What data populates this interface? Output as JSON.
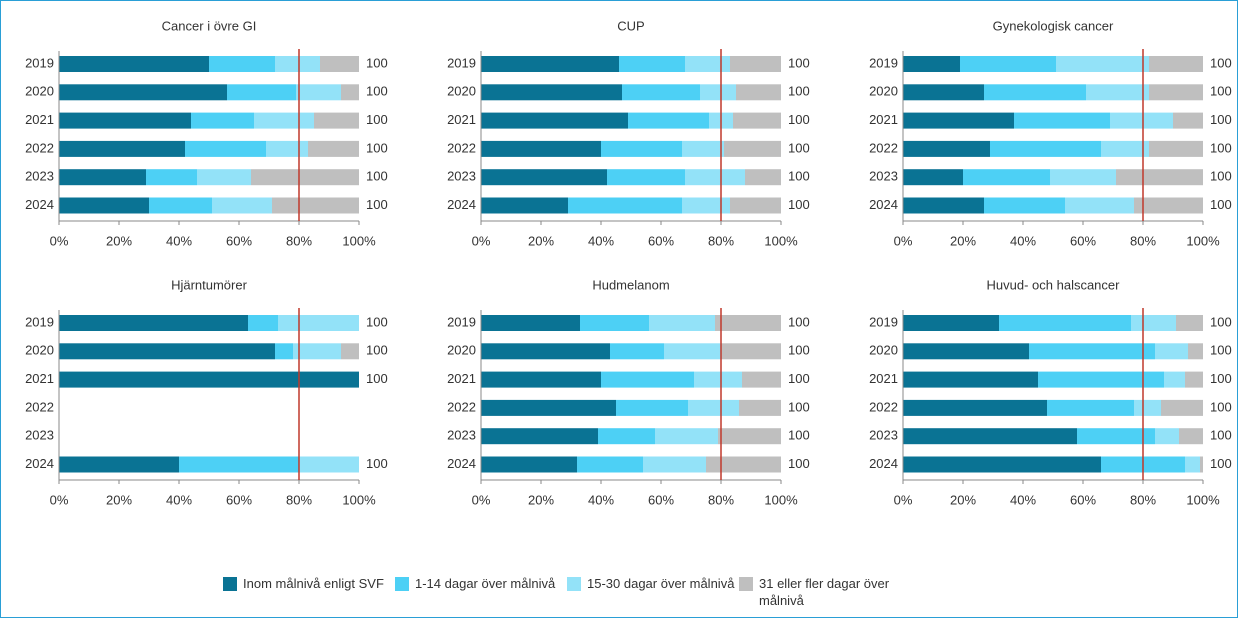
{
  "legend": [
    {
      "name": "Inom målnivå enligt SVF",
      "color": "#0a7394"
    },
    {
      "name": "1-14 dagar över målnivå",
      "color": "#4dd0f5"
    },
    {
      "name": "15-30 dagar över målnivå",
      "color": "#93e2f8"
    },
    {
      "name": "31 eller fler dagar över målnivå",
      "color": "#bfbfbf"
    }
  ],
  "chart_data": [
    {
      "type": "bar",
      "orientation": "horizontal",
      "stacked": true,
      "title": "Cancer i övre GI",
      "categories": [
        "2019",
        "2020",
        "2021",
        "2022",
        "2023",
        "2024"
      ],
      "series": [
        {
          "values": [
            50,
            56,
            44,
            42,
            29,
            30
          ]
        },
        {
          "values": [
            22,
            23,
            21,
            27,
            17,
            21
          ]
        },
        {
          "values": [
            15,
            15,
            20,
            14,
            18,
            20
          ]
        },
        {
          "values": [
            13,
            6,
            15,
            17,
            36,
            29
          ]
        }
      ],
      "totals": [
        100,
        100,
        100,
        100,
        100,
        100
      ],
      "reference_line": 80,
      "xlim": [
        0,
        100
      ],
      "xticks": [
        {
          "value": 0,
          "label": "0%"
        },
        {
          "value": 20,
          "label": "20%"
        },
        {
          "value": 40,
          "label": "40%"
        },
        {
          "value": 60,
          "label": "60%"
        },
        {
          "value": 80,
          "label": "80%"
        },
        {
          "value": 100,
          "label": "100%"
        }
      ]
    },
    {
      "type": "bar",
      "orientation": "horizontal",
      "stacked": true,
      "title": "CUP",
      "categories": [
        "2019",
        "2020",
        "2021",
        "2022",
        "2023",
        "2024"
      ],
      "series": [
        {
          "values": [
            46,
            47,
            49,
            40,
            42,
            29
          ]
        },
        {
          "values": [
            22,
            26,
            27,
            27,
            26,
            38
          ]
        },
        {
          "values": [
            15,
            12,
            8,
            14,
            20,
            16
          ]
        },
        {
          "values": [
            17,
            15,
            16,
            19,
            12,
            17
          ]
        }
      ],
      "totals": [
        100,
        100,
        100,
        100,
        100,
        100
      ],
      "reference_line": 80,
      "xlim": [
        0,
        100
      ],
      "xticks": [
        {
          "value": 0,
          "label": "0%"
        },
        {
          "value": 20,
          "label": "20%"
        },
        {
          "value": 40,
          "label": "40%"
        },
        {
          "value": 60,
          "label": "60%"
        },
        {
          "value": 80,
          "label": "80%"
        },
        {
          "value": 100,
          "label": "100%"
        }
      ]
    },
    {
      "type": "bar",
      "orientation": "horizontal",
      "stacked": true,
      "title": "Gynekologisk cancer",
      "categories": [
        "2019",
        "2020",
        "2021",
        "2022",
        "2023",
        "2024"
      ],
      "series": [
        {
          "values": [
            19,
            27,
            37,
            29,
            20,
            27
          ]
        },
        {
          "values": [
            32,
            34,
            32,
            37,
            29,
            27
          ]
        },
        {
          "values": [
            31,
            21,
            21,
            16,
            22,
            23
          ]
        },
        {
          "values": [
            18,
            18,
            10,
            18,
            29,
            23
          ]
        }
      ],
      "totals": [
        100,
        100,
        100,
        100,
        100,
        100
      ],
      "reference_line": 80,
      "xlim": [
        0,
        100
      ],
      "xticks": [
        {
          "value": 0,
          "label": "0%"
        },
        {
          "value": 20,
          "label": "20%"
        },
        {
          "value": 40,
          "label": "40%"
        },
        {
          "value": 60,
          "label": "60%"
        },
        {
          "value": 80,
          "label": "80%"
        },
        {
          "value": 100,
          "label": "100%"
        }
      ]
    },
    {
      "type": "bar",
      "orientation": "horizontal",
      "stacked": true,
      "title": "Hjärntumörer",
      "categories": [
        "2019",
        "2020",
        "2021",
        "2022",
        "2023",
        "2024"
      ],
      "series": [
        {
          "values": [
            63,
            72,
            100,
            null,
            null,
            40
          ]
        },
        {
          "values": [
            10,
            6,
            0,
            null,
            null,
            40
          ]
        },
        {
          "values": [
            27,
            16,
            0,
            null,
            null,
            20
          ]
        },
        {
          "values": [
            0,
            6,
            0,
            null,
            null,
            0
          ]
        }
      ],
      "totals": [
        100,
        100,
        100,
        null,
        null,
        100
      ],
      "reference_line": 80,
      "xlim": [
        0,
        100
      ],
      "xticks": [
        {
          "value": 0,
          "label": "0%"
        },
        {
          "value": 20,
          "label": "20%"
        },
        {
          "value": 40,
          "label": "40%"
        },
        {
          "value": 60,
          "label": "60%"
        },
        {
          "value": 80,
          "label": "80%"
        },
        {
          "value": 100,
          "label": "100%"
        }
      ]
    },
    {
      "type": "bar",
      "orientation": "horizontal",
      "stacked": true,
      "title": "Hudmelanom",
      "categories": [
        "2019",
        "2020",
        "2021",
        "2022",
        "2023",
        "2024"
      ],
      "series": [
        {
          "values": [
            33,
            43,
            40,
            45,
            39,
            32
          ]
        },
        {
          "values": [
            23,
            18,
            31,
            24,
            19,
            22
          ]
        },
        {
          "values": [
            22,
            19,
            16,
            17,
            21,
            21
          ]
        },
        {
          "values": [
            22,
            20,
            13,
            14,
            21,
            25
          ]
        }
      ],
      "totals": [
        100,
        100,
        100,
        100,
        100,
        100
      ],
      "reference_line": 80,
      "xlim": [
        0,
        100
      ],
      "xticks": [
        {
          "value": 0,
          "label": "0%"
        },
        {
          "value": 20,
          "label": "20%"
        },
        {
          "value": 40,
          "label": "40%"
        },
        {
          "value": 60,
          "label": "60%"
        },
        {
          "value": 80,
          "label": "80%"
        },
        {
          "value": 100,
          "label": "100%"
        }
      ]
    },
    {
      "type": "bar",
      "orientation": "horizontal",
      "stacked": true,
      "title": "Huvud- och halscancer",
      "categories": [
        "2019",
        "2020",
        "2021",
        "2022",
        "2023",
        "2024"
      ],
      "series": [
        {
          "values": [
            32,
            42,
            45,
            48,
            58,
            66
          ]
        },
        {
          "values": [
            44,
            42,
            42,
            29,
            26,
            28
          ]
        },
        {
          "values": [
            15,
            11,
            7,
            9,
            8,
            5
          ]
        },
        {
          "values": [
            9,
            5,
            6,
            14,
            8,
            1
          ]
        }
      ],
      "totals": [
        100,
        100,
        100,
        100,
        100,
        100
      ],
      "reference_line": 80,
      "xlim": [
        0,
        100
      ],
      "xticks": [
        {
          "value": 0,
          "label": "0%"
        },
        {
          "value": 20,
          "label": "20%"
        },
        {
          "value": 40,
          "label": "40%"
        },
        {
          "value": 60,
          "label": "60%"
        },
        {
          "value": 80,
          "label": "80%"
        },
        {
          "value": 100,
          "label": "100%"
        }
      ]
    }
  ]
}
